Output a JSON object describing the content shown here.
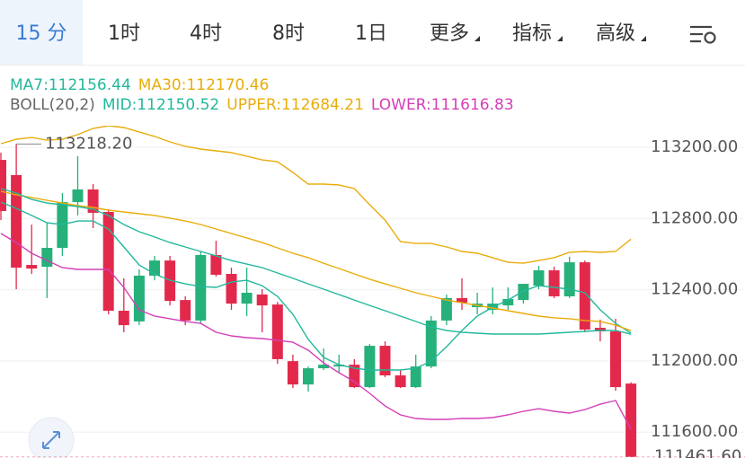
{
  "tabs": [
    "15 分",
    "1时",
    "4时",
    "8时",
    "1日",
    "更多",
    "指标",
    "高级"
  ],
  "chart_data": {
    "type": "candlestick",
    "indicator_label": "BOLL(20,2)",
    "up_color": "#26b07a",
    "down_color": "#e3294b",
    "ylim": [
      111455,
      113321
    ],
    "yticks": [
      {
        "value": 113200,
        "label": "113200.00"
      },
      {
        "value": 112800,
        "label": "112800.00"
      },
      {
        "value": 112400,
        "label": "112400.00"
      },
      {
        "value": 112000,
        "label": "112000.00"
      },
      {
        "value": 111600,
        "label": "111600.00"
      }
    ],
    "grid": true,
    "high_marker": {
      "index": 1,
      "value": 113218.2,
      "label": "113218.20"
    },
    "last_price": {
      "value": 111461.6,
      "label": "111461.60"
    },
    "open": [
      113129,
      113044,
      112539,
      112529,
      112635,
      112892,
      112963,
      112837,
      112282,
      112222,
      112479,
      112564,
      112342,
      112227,
      112595,
      112489,
      112322,
      112373,
      112317,
      111999,
      111868,
      111959,
      111969,
      111979,
      111853,
      112085,
      111919,
      111853,
      111969,
      112227,
      112353,
      112302,
      112287,
      112312,
      112342,
      112423,
      112509,
      112363,
      112554,
      112186,
      112166,
      111873
    ],
    "high": [
      113170,
      113218.2,
      112766,
      112776,
      112943,
      113150,
      112993,
      112852,
      112464,
      112514,
      112590,
      112590,
      112363,
      112615,
      112675,
      112524,
      112524,
      112403,
      112332,
      112035,
      111969,
      112070,
      112035,
      112010,
      112095,
      112110,
      111949,
      112035,
      112252,
      112373,
      112464,
      112383,
      112413,
      112413,
      112433,
      112534,
      112529,
      112585,
      112564,
      112232,
      112237,
      111880
    ],
    "low": [
      112791,
      112403,
      112489,
      112353,
      112590,
      112817,
      112746,
      112262,
      112161,
      112201,
      112453,
      112312,
      112201,
      112211,
      112474,
      112287,
      112252,
      112161,
      111984,
      111848,
      111828,
      111949,
      111934,
      111848,
      111848,
      111909,
      111848,
      111848,
      111959,
      112201,
      112287,
      112262,
      112262,
      112287,
      112322,
      112403,
      112353,
      112353,
      112161,
      112110,
      111833,
      111461.6
    ],
    "close": [
      112842,
      112524,
      112519,
      112635,
      112892,
      112963,
      112832,
      112282,
      112201,
      112479,
      112564,
      112337,
      112227,
      112595,
      112484,
      112322,
      112383,
      112312,
      112010,
      111868,
      111959,
      111979,
      111979,
      111853,
      112085,
      111919,
      111853,
      111969,
      112227,
      112353,
      112327,
      112322,
      112322,
      112348,
      112433,
      112509,
      112363,
      112554,
      112176,
      112166,
      111853,
      111461.6
    ],
    "series": [
      {
        "name": "MA7:112156.44",
        "color": "#22b89b",
        "line": 1,
        "values": [
          112892,
          112857,
          112817,
          112776,
          112766,
          112786,
          112786,
          112741,
          112640,
          112539,
          112489,
          112453,
          112433,
          112418,
          112413,
          112443,
          112453,
          112423,
          112363,
          112262,
          112121,
          112020,
          111979,
          111959,
          111949,
          111949,
          111949,
          111959,
          111999,
          112080,
          112171,
          112252,
          112302,
          112342,
          112393,
          112423,
          112413,
          112403,
          112383,
          112287,
          112211,
          112156.44
        ]
      },
      {
        "name": "MA30:112170.46",
        "color": "#e8ad0c",
        "line": 1,
        "values": [
          112953,
          112933,
          112918,
          112902,
          112887,
          112872,
          112862,
          112847,
          112837,
          112827,
          112817,
          112802,
          112786,
          112766,
          112741,
          112716,
          112691,
          112665,
          112635,
          112605,
          112580,
          112549,
          112519,
          112489,
          112459,
          112433,
          112408,
          112383,
          112363,
          112342,
          112327,
          112312,
          112297,
          112282,
          112267,
          112252,
          112242,
          112237,
          112227,
          112222,
          112201,
          112170.46
        ]
      },
      {
        "name": "MID:112150.52",
        "color": "#22b89b",
        "line": 2,
        "values": [
          112968,
          112943,
          112907,
          112887,
          112877,
          112867,
          112852,
          112817,
          112766,
          112726,
          112696,
          112665,
          112640,
          112615,
          112590,
          112564,
          112544,
          112524,
          112494,
          112464,
          112433,
          112403,
          112373,
          112342,
          112312,
          112282,
          112252,
          112222,
          112191,
          112171,
          112161,
          112156,
          112151,
          112151,
          112151,
          112151,
          112156,
          112161,
          112166,
          112171,
          112171,
          112150.52
        ]
      },
      {
        "name": "UPPER:112684.21",
        "color": "#e8ad0c",
        "line": 2,
        "values": [
          113220,
          113245,
          113255,
          113240,
          113245,
          113271,
          113306,
          113321,
          113311,
          113286,
          113261,
          113230,
          113205,
          113190,
          113180,
          113170,
          113150,
          113129,
          113119,
          113059,
          112993,
          112993,
          112988,
          112968,
          112877,
          112791,
          112670,
          112660,
          112660,
          112640,
          112615,
          112605,
          112580,
          112554,
          112549,
          112564,
          112580,
          112610,
          112615,
          112610,
          112615,
          112684.21
        ]
      },
      {
        "name": "LOWER:111616.83",
        "color": "#d43fb6",
        "line": 2,
        "values": [
          112716,
          112665,
          112605,
          112564,
          112524,
          112514,
          112514,
          112514,
          112413,
          112287,
          112252,
          112237,
          112222,
          112211,
          112161,
          112141,
          112131,
          112126,
          112116,
          112105,
          112060,
          111989,
          111934,
          111883,
          111818,
          111747,
          111697,
          111677,
          111672,
          111672,
          111677,
          111677,
          111682,
          111697,
          111717,
          111732,
          111717,
          111707,
          111727,
          111757,
          111778,
          111616.83
        ]
      }
    ]
  }
}
